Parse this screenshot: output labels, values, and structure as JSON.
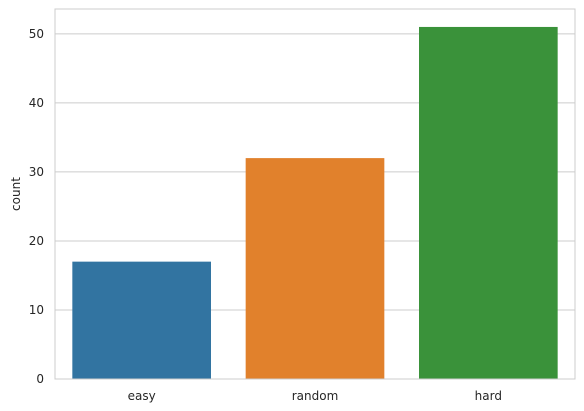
{
  "chart_data": {
    "type": "bar",
    "categories": [
      "easy",
      "random",
      "hard"
    ],
    "values": [
      17,
      32,
      51
    ],
    "title": "",
    "xlabel": "",
    "ylabel": "count",
    "ylim": [
      0,
      53.6
    ],
    "yticks": [
      "0",
      "10",
      "20",
      "30",
      "40",
      "50"
    ],
    "grid": true,
    "style": "whitegrid",
    "colors": [
      "#3274a1",
      "#e1812c",
      "#3a923a"
    ]
  }
}
